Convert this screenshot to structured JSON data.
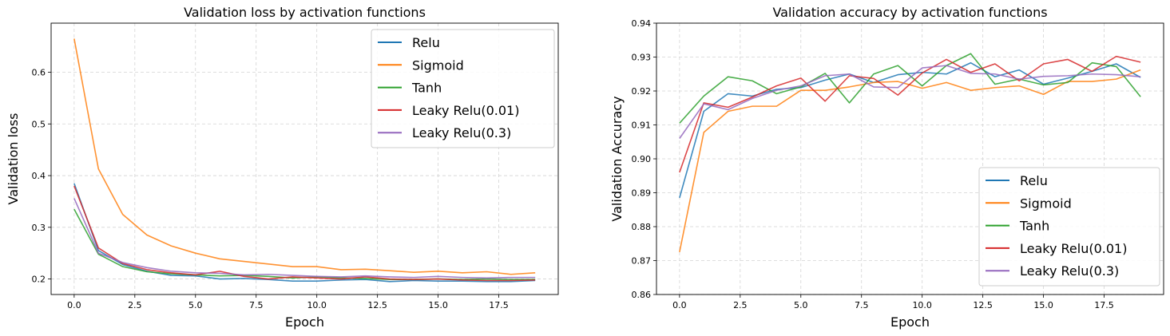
{
  "chart_data": [
    {
      "type": "line",
      "title": "Validation loss by activation functions",
      "xlabel": "Epoch",
      "ylabel": "Validation loss",
      "xlim": [
        -0.95,
        19.95
      ],
      "ylim": [
        0.17,
        0.695
      ],
      "xticks": [
        0.0,
        2.5,
        5.0,
        7.5,
        10.0,
        12.5,
        15.0,
        17.5
      ],
      "xtick_labels": [
        "0.0",
        "2.5",
        "5.0",
        "7.5",
        "10.0",
        "12.5",
        "15.0",
        "17.5"
      ],
      "yticks": [
        0.2,
        0.3,
        0.4,
        0.5,
        0.6
      ],
      "ytick_labels": [
        "0.2",
        "0.3",
        "0.4",
        "0.5",
        "0.6"
      ],
      "grid": true,
      "legend_position": "upper-right",
      "x": [
        0,
        1,
        2,
        3,
        4,
        5,
        6,
        7,
        8,
        9,
        10,
        11,
        12,
        13,
        14,
        15,
        16,
        17,
        18,
        19
      ],
      "series": [
        {
          "name": "Relu",
          "color": "#1f77b4",
          "values": [
            0.385,
            0.255,
            0.228,
            0.215,
            0.207,
            0.206,
            0.2,
            0.201,
            0.199,
            0.196,
            0.196,
            0.198,
            0.199,
            0.195,
            0.197,
            0.196,
            0.196,
            0.195,
            0.195,
            0.197
          ]
        },
        {
          "name": "Sigmoid",
          "color": "#ff7f0e",
          "values": [
            0.665,
            0.413,
            0.325,
            0.285,
            0.264,
            0.25,
            0.239,
            0.234,
            0.229,
            0.224,
            0.224,
            0.218,
            0.219,
            0.216,
            0.213,
            0.215,
            0.212,
            0.214,
            0.209,
            0.212
          ]
        },
        {
          "name": "Tanh",
          "color": "#2ca02c",
          "values": [
            0.335,
            0.248,
            0.224,
            0.214,
            0.21,
            0.208,
            0.206,
            0.207,
            0.205,
            0.202,
            0.204,
            0.202,
            0.201,
            0.199,
            0.199,
            0.2,
            0.199,
            0.2,
            0.199,
            0.199
          ]
        },
        {
          "name": "Leaky Relu(0.01)",
          "color": "#d62728",
          "values": [
            0.38,
            0.26,
            0.23,
            0.218,
            0.212,
            0.208,
            0.215,
            0.205,
            0.2,
            0.204,
            0.202,
            0.2,
            0.204,
            0.2,
            0.199,
            0.2,
            0.198,
            0.197,
            0.197,
            0.198
          ]
        },
        {
          "name": "Leaky Relu(0.3)",
          "color": "#9467bd",
          "values": [
            0.356,
            0.25,
            0.232,
            0.222,
            0.215,
            0.212,
            0.211,
            0.208,
            0.209,
            0.207,
            0.205,
            0.204,
            0.206,
            0.204,
            0.203,
            0.205,
            0.203,
            0.202,
            0.203,
            0.203
          ]
        }
      ]
    },
    {
      "type": "line",
      "title": "Validation accuracy by activation functions",
      "xlabel": "Epoch",
      "ylabel": "Validation Accuracy",
      "xlim": [
        -0.95,
        19.95
      ],
      "ylim": [
        0.86,
        0.94
      ],
      "xticks": [
        0.0,
        2.5,
        5.0,
        7.5,
        10.0,
        12.5,
        15.0,
        17.5
      ],
      "xtick_labels": [
        "0.0",
        "2.5",
        "5.0",
        "7.5",
        "10.0",
        "12.5",
        "15.0",
        "17.5"
      ],
      "yticks": [
        0.86,
        0.87,
        0.88,
        0.89,
        0.9,
        0.91,
        0.92,
        0.93,
        0.94
      ],
      "ytick_labels": [
        "0.86",
        "0.87",
        "0.88",
        "0.89",
        "0.90",
        "0.91",
        "0.92",
        "0.93",
        "0.94"
      ],
      "grid": true,
      "legend_position": "lower-right",
      "x": [
        0,
        1,
        2,
        3,
        4,
        5,
        6,
        7,
        8,
        9,
        10,
        11,
        12,
        13,
        14,
        15,
        16,
        17,
        18,
        19
      ],
      "series": [
        {
          "name": "Relu",
          "color": "#1f77b4",
          "values": [
            0.8885,
            0.914,
            0.9192,
            0.9185,
            0.9205,
            0.921,
            0.9232,
            0.925,
            0.9225,
            0.9248,
            0.9255,
            0.925,
            0.9283,
            0.9242,
            0.9262,
            0.922,
            0.9238,
            0.9258,
            0.928,
            0.924
          ]
        },
        {
          "name": "Sigmoid",
          "color": "#ff7f0e",
          "values": [
            0.8725,
            0.9078,
            0.914,
            0.9155,
            0.9155,
            0.9202,
            0.9202,
            0.9212,
            0.9225,
            0.9228,
            0.9208,
            0.9225,
            0.9202,
            0.921,
            0.9215,
            0.919,
            0.9228,
            0.9228,
            0.9235,
            0.9262
          ]
        },
        {
          "name": "Tanh",
          "color": "#2ca02c",
          "values": [
            0.9105,
            0.9185,
            0.9242,
            0.923,
            0.9192,
            0.9212,
            0.9252,
            0.9165,
            0.925,
            0.9275,
            0.9215,
            0.9275,
            0.931,
            0.922,
            0.9235,
            0.9218,
            0.9225,
            0.9283,
            0.9272,
            0.9183
          ]
        },
        {
          "name": "Leaky Relu(0.01)",
          "color": "#d62728",
          "values": [
            0.896,
            0.9165,
            0.9152,
            0.9182,
            0.9215,
            0.9238,
            0.917,
            0.9245,
            0.9237,
            0.9188,
            0.9253,
            0.9293,
            0.9255,
            0.928,
            0.923,
            0.928,
            0.9293,
            0.9258,
            0.9302,
            0.9285
          ]
        },
        {
          "name": "Leaky Relu(0.3)",
          "color": "#9467bd",
          "values": [
            0.906,
            0.9162,
            0.9145,
            0.9178,
            0.9202,
            0.9215,
            0.9245,
            0.925,
            0.9212,
            0.921,
            0.9268,
            0.9275,
            0.9252,
            0.925,
            0.9235,
            0.9243,
            0.9245,
            0.925,
            0.9248,
            0.9242
          ]
        }
      ]
    }
  ]
}
